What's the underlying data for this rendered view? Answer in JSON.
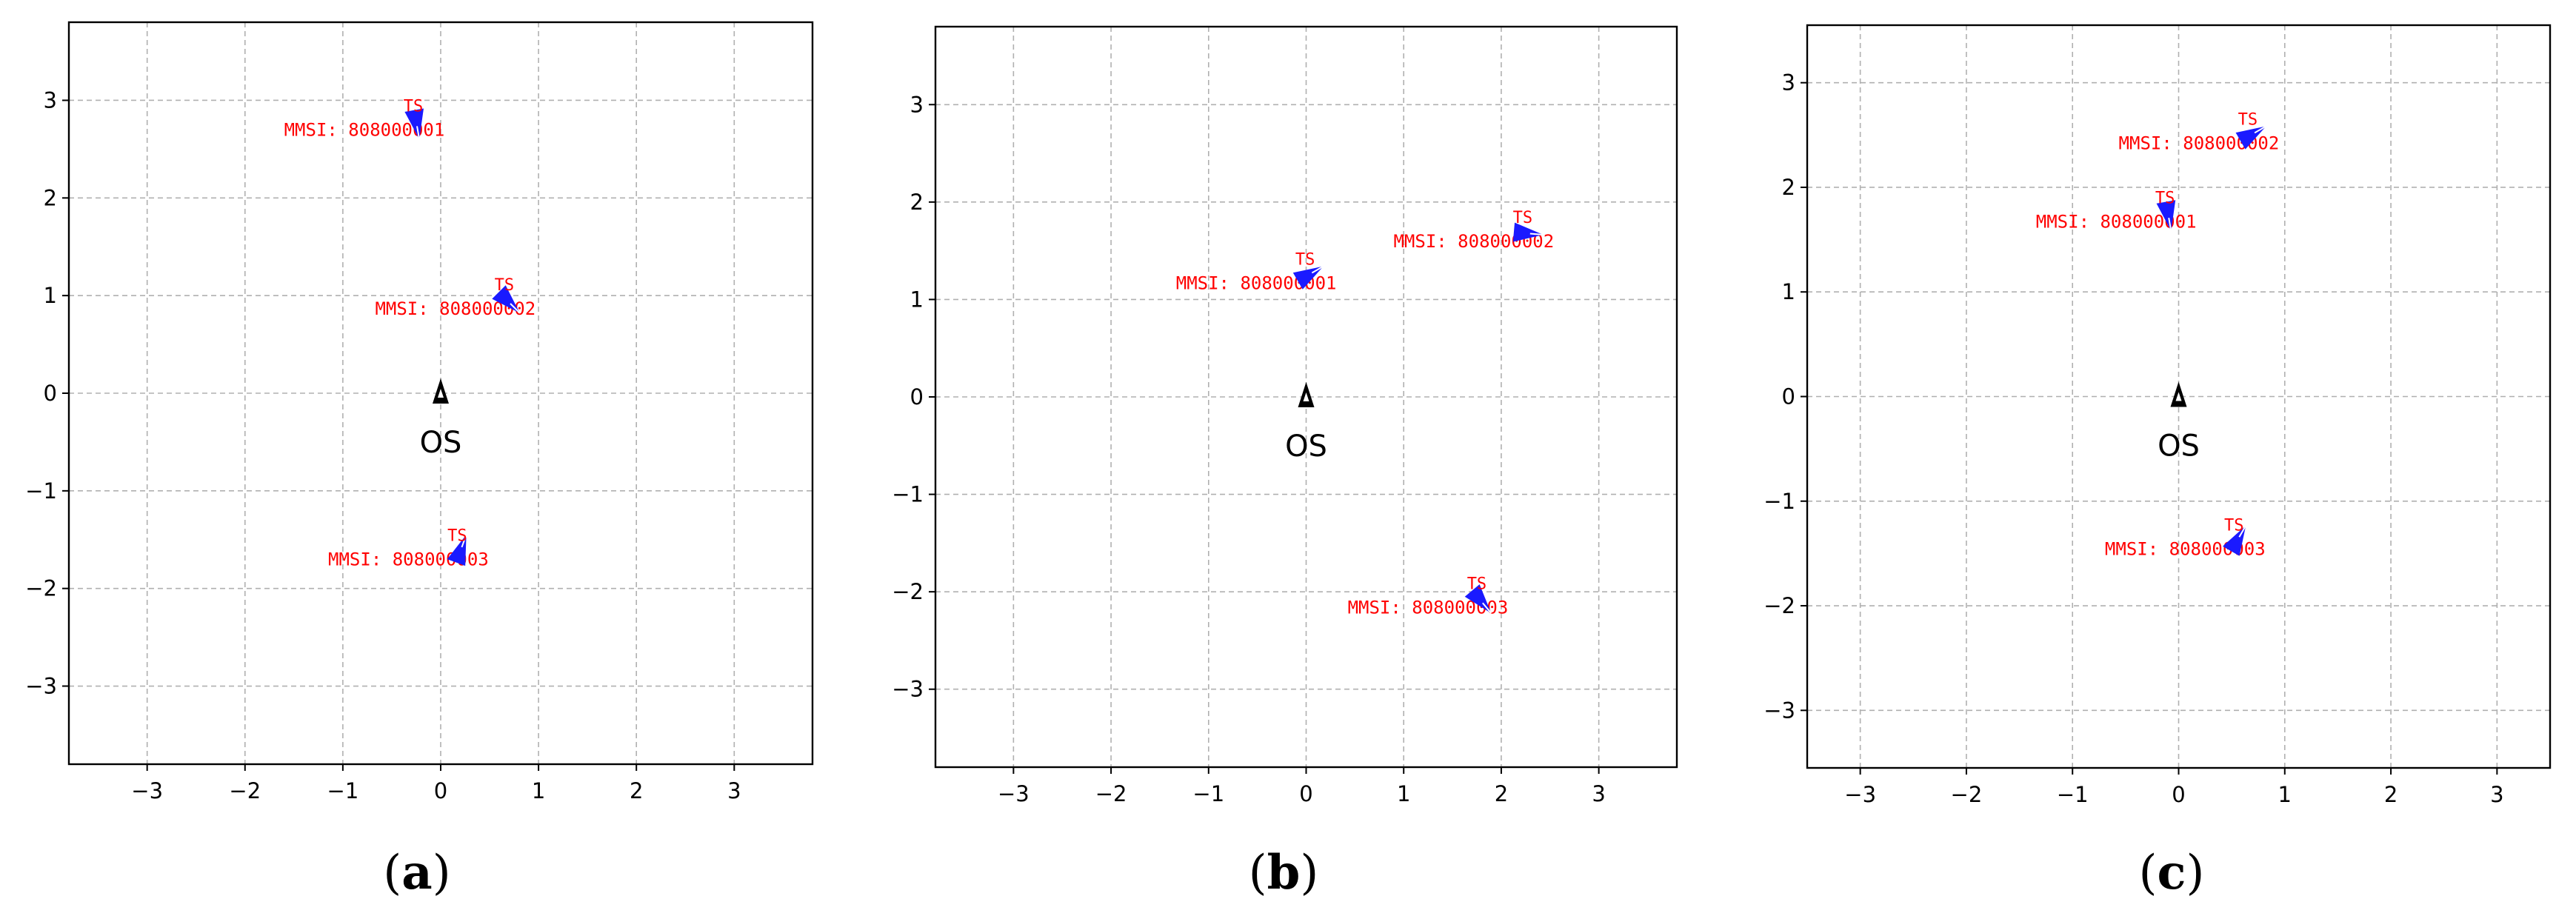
{
  "figure": {
    "colors": {
      "target_ship": "#1a1aff",
      "ts_text": "#ff0000",
      "own_ship": "#000000",
      "grid": "#b0b0b0"
    }
  },
  "chart_data": [
    {
      "type": "scatter",
      "panel": "a",
      "caption": {
        "open": "(",
        "letter": "a",
        "close": ")"
      },
      "xlim": [
        -3.8,
        3.8
      ],
      "ylim": [
        -3.8,
        3.8
      ],
      "xticks": [
        -3,
        -2,
        -1,
        0,
        1,
        2,
        3
      ],
      "yticks": [
        -3,
        -2,
        -1,
        0,
        1,
        2,
        3
      ],
      "xtick_labels": [
        "−3",
        "−2",
        "−1",
        "0",
        "1",
        "2",
        "3"
      ],
      "ytick_labels": [
        "−3",
        "−2",
        "−1",
        "0",
        "1",
        "2",
        "3"
      ],
      "grid": true,
      "own_ship": {
        "label": "OS",
        "x": 0,
        "y": 0,
        "heading": 0
      },
      "targets": [
        {
          "tag": "TS",
          "label": "MMSI: 808000001",
          "x": -0.25,
          "y": 2.78,
          "heading": 170
        },
        {
          "tag": "TS",
          "label": "MMSI: 808000002",
          "x": 0.68,
          "y": 0.95,
          "heading": 135
        },
        {
          "tag": "TS",
          "label": "MMSI: 808000003",
          "x": 0.2,
          "y": -1.62,
          "heading": 20
        }
      ]
    },
    {
      "type": "scatter",
      "panel": "b",
      "caption": {
        "open": "(",
        "letter": "b",
        "close": ")"
      },
      "xlim": [
        -3.8,
        3.8
      ],
      "ylim": [
        -3.8,
        3.8
      ],
      "xticks": [
        -3,
        -2,
        -1,
        0,
        1,
        2,
        3
      ],
      "yticks": [
        -3,
        -2,
        -1,
        0,
        1,
        2,
        3
      ],
      "xtick_labels": [
        "−3",
        "−2",
        "−1",
        "0",
        "1",
        "2",
        "3"
      ],
      "ytick_labels": [
        "−3",
        "−2",
        "−1",
        "0",
        "1",
        "2",
        "3"
      ],
      "grid": true,
      "own_ship": {
        "label": "OS",
        "x": 0,
        "y": 0,
        "heading": 0
      },
      "targets": [
        {
          "tag": "TS",
          "label": "MMSI: 808000001",
          "x": 0.02,
          "y": 1.25,
          "heading": 60
        },
        {
          "tag": "TS",
          "label": "MMSI: 808000002",
          "x": 2.25,
          "y": 1.68,
          "heading": 95
        },
        {
          "tag": "TS",
          "label": "MMSI: 808000003",
          "x": 1.78,
          "y": -2.08,
          "heading": 140
        }
      ]
    },
    {
      "type": "scatter",
      "panel": "c",
      "caption": {
        "open": "(",
        "letter": "c",
        "close": ")"
      },
      "xlim": [
        -3.5,
        3.5
      ],
      "ylim": [
        -3.55,
        3.55
      ],
      "xticks": [
        -3,
        -2,
        -1,
        0,
        1,
        2,
        3
      ],
      "yticks": [
        -3,
        -2,
        -1,
        0,
        1,
        2,
        3
      ],
      "xtick_labels": [
        "−3",
        "−2",
        "−1",
        "0",
        "1",
        "2",
        "3"
      ],
      "ytick_labels": [
        "−3",
        "−2",
        "−1",
        "0",
        "1",
        "2",
        "3"
      ],
      "grid": true,
      "own_ship": {
        "label": "OS",
        "x": 0,
        "y": 0,
        "heading": 0
      },
      "targets": [
        {
          "tag": "TS",
          "label": "MMSI: 808000001",
          "x": -0.1,
          "y": 1.75,
          "heading": 170
        },
        {
          "tag": "TS",
          "label": "MMSI: 808000002",
          "x": 0.68,
          "y": 2.5,
          "heading": 60
        },
        {
          "tag": "TS",
          "label": "MMSI: 808000003",
          "x": 0.55,
          "y": -1.38,
          "heading": 30
        }
      ]
    }
  ]
}
